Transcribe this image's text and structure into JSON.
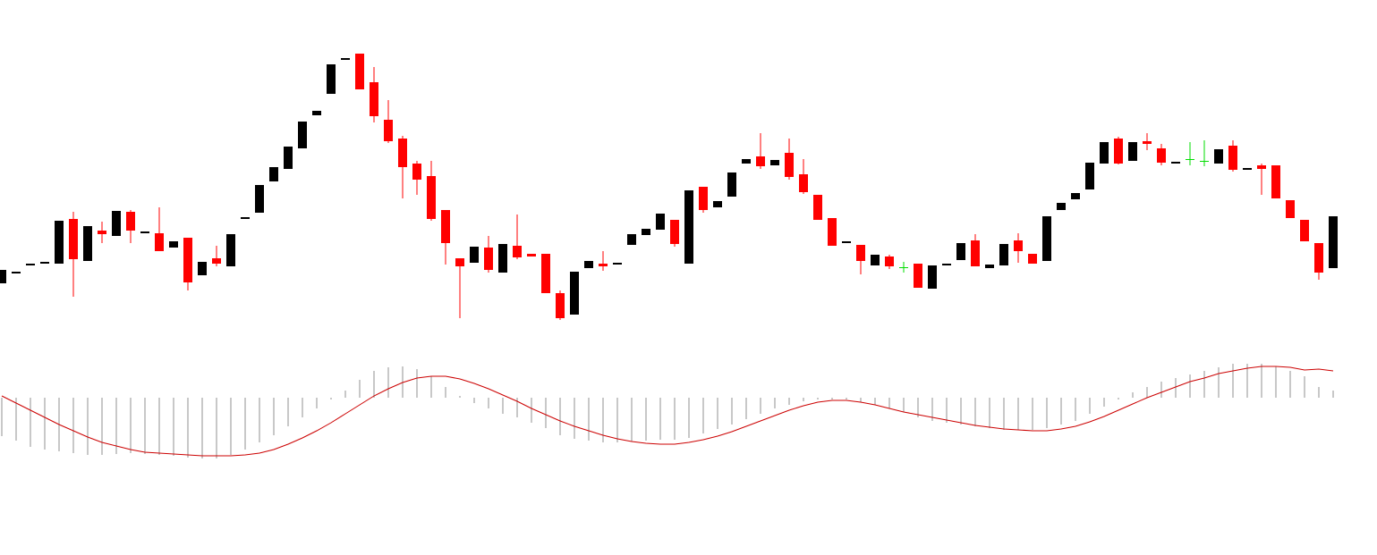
{
  "chart_data": [
    {
      "type": "candlestick",
      "open": [
        53,
        65,
        74,
        76,
        75,
        125,
        78,
        112,
        106,
        133,
        110,
        109,
        93,
        104,
        62,
        81,
        72,
        126,
        132,
        167,
        181,
        204,
        241,
        265,
        304,
        310,
        278,
        236,
        215,
        187,
        173,
        135,
        81,
        76,
        93,
        65,
        95,
        86,
        86,
        42,
        18,
        70,
        75,
        75,
        96,
        107,
        113,
        124,
        75,
        161,
        138,
        150,
        187,
        195,
        185,
        199,
        175,
        152,
        126,
        99,
        96,
        73,
        83,
        71,
        75,
        47,
        74,
        79,
        101,
        70,
        73,
        101,
        86,
        78,
        135,
        147,
        158,
        187,
        215,
        190,
        212,
        204,
        188,
        192,
        190,
        187,
        207,
        181,
        185,
        185,
        146,
        124,
        98,
        70
      ],
      "close": [
        68,
        66,
        75,
        77,
        123,
        80,
        117,
        108,
        134,
        112,
        111,
        89,
        100,
        54,
        77,
        75,
        108,
        127,
        163,
        183,
        206,
        234,
        246,
        298,
        305,
        270,
        240,
        212,
        183,
        169,
        125,
        98,
        72,
        94,
        68,
        97,
        82,
        83,
        42,
        14,
        66,
        78,
        72,
        76,
        108,
        114,
        131,
        97,
        157,
        135,
        145,
        177,
        192,
        184,
        191,
        172,
        155,
        124,
        95,
        100,
        78,
        85,
        72,
        71,
        48,
        73,
        75,
        98,
        72,
        74,
        97,
        89,
        75,
        128,
        143,
        154,
        188,
        211,
        187,
        211,
        209,
        188,
        189,
        192,
        190,
        203,
        180,
        182,
        181,
        148,
        126,
        100,
        65,
        128
      ],
      "high": [
        68,
        66,
        75,
        77,
        123,
        133,
        117,
        122,
        134,
        135,
        111,
        138,
        100,
        104,
        77,
        95,
        108,
        127,
        163,
        183,
        206,
        234,
        246,
        298,
        305,
        310,
        295,
        258,
        218,
        190,
        190,
        135,
        81,
        94,
        106,
        97,
        130,
        86,
        86,
        45,
        66,
        78,
        89,
        76,
        108,
        114,
        131,
        124,
        157,
        161,
        145,
        177,
        192,
        221,
        191,
        215,
        192,
        152,
        126,
        100,
        96,
        85,
        85,
        77,
        75,
        73,
        75,
        98,
        108,
        74,
        97,
        109,
        86,
        128,
        143,
        154,
        188,
        211,
        217,
        211,
        221,
        209,
        189,
        211,
        213,
        203,
        213,
        182,
        187,
        185,
        146,
        124,
        98,
        128
      ],
      "low": [
        53,
        65,
        74,
        76,
        75,
        38,
        78,
        98,
        106,
        98,
        110,
        89,
        93,
        45,
        62,
        72,
        72,
        126,
        132,
        167,
        181,
        204,
        241,
        265,
        304,
        270,
        233,
        210,
        148,
        152,
        123,
        74,
        14,
        76,
        65,
        65,
        80,
        83,
        42,
        12,
        18,
        70,
        67,
        75,
        96,
        107,
        113,
        94,
        75,
        132,
        138,
        150,
        187,
        181,
        185,
        169,
        153,
        124,
        95,
        99,
        63,
        73,
        69,
        65,
        48,
        47,
        74,
        79,
        72,
        70,
        73,
        76,
        75,
        78,
        135,
        147,
        158,
        187,
        186,
        190,
        202,
        185,
        188,
        185,
        184,
        187,
        178,
        181,
        152,
        148,
        126,
        100,
        57,
        70
      ],
      "up_color": "#000000",
      "down_color": "#ff0000",
      "doji_color": "#00dd00",
      "ylim": [
        0,
        370
      ]
    },
    {
      "type": "bar",
      "values": [
        -43,
        -48,
        -55,
        -58,
        -60,
        -62,
        -64,
        -64,
        -63,
        -62,
        -63,
        -64,
        -65,
        -67,
        -68,
        -68,
        -64,
        -58,
        -50,
        -42,
        -32,
        -22,
        -12,
        -2,
        8,
        20,
        30,
        34,
        35,
        32,
        24,
        12,
        2,
        -6,
        -12,
        -18,
        -22,
        -28,
        -34,
        -42,
        -46,
        -48,
        -50,
        -50,
        -49,
        -48,
        -47,
        -47,
        -45,
        -40,
        -35,
        -30,
        -24,
        -18,
        -12,
        -8,
        -4,
        -2,
        -2,
        -2,
        -5,
        -8,
        -12,
        -16,
        -22,
        -26,
        -28,
        -30,
        -32,
        -34,
        -36,
        -36,
        -36,
        -34,
        -30,
        -26,
        -18,
        -10,
        -2,
        6,
        12,
        18,
        22,
        26,
        30,
        34,
        38,
        38,
        38,
        35,
        30,
        24,
        12,
        8
      ],
      "color": "#c8c8c8",
      "ylim": [
        -176,
        75
      ]
    },
    {
      "type": "line",
      "values": [
        2,
        -6,
        -14,
        -22,
        -30,
        -37,
        -44,
        -50,
        -54,
        -58,
        -61,
        -62,
        -63,
        -64,
        -65,
        -65,
        -65,
        -64,
        -62,
        -58,
        -52,
        -45,
        -37,
        -28,
        -18,
        -8,
        2,
        10,
        17,
        22,
        24,
        24,
        21,
        16,
        10,
        3,
        -4,
        -12,
        -19,
        -26,
        -32,
        -37,
        -42,
        -46,
        -49,
        -51,
        -52,
        -52,
        -50,
        -47,
        -43,
        -38,
        -32,
        -26,
        -20,
        -14,
        -9,
        -5,
        -3,
        -3,
        -5,
        -8,
        -12,
        -16,
        -19,
        -22,
        -25,
        -28,
        -31,
        -33,
        -35,
        -36,
        -37,
        -37,
        -35,
        -32,
        -27,
        -21,
        -14,
        -7,
        0,
        6,
        12,
        18,
        22,
        27,
        30,
        33,
        35,
        35,
        34,
        31,
        32,
        30
      ],
      "color": "#cc0000",
      "ylim": [
        -176,
        75
      ]
    }
  ]
}
